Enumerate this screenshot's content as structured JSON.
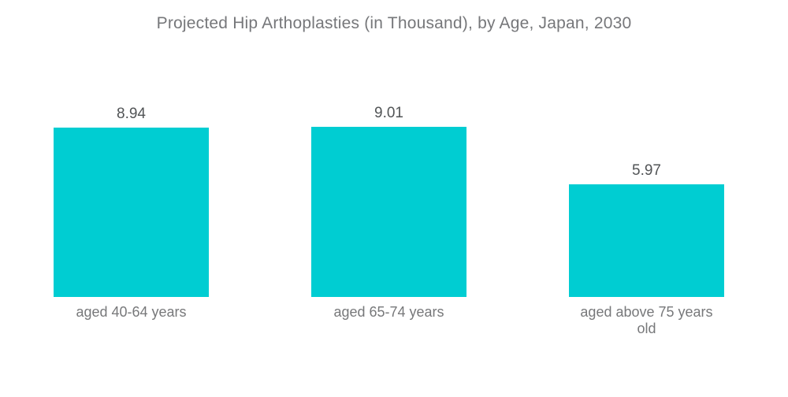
{
  "chart_data": {
    "type": "bar",
    "title": "Projected Hip Arthoplasties (in Thousand), by Age, Japan, 2030",
    "categories": [
      "aged 40-64 years",
      "aged 65-74 years",
      "aged above 75 years old"
    ],
    "values": [
      8.94,
      9.01,
      5.97
    ],
    "value_labels": [
      "8.94",
      "9.01",
      "5.97"
    ],
    "xlabel": "",
    "ylabel": "",
    "ylim": [
      0,
      9.5
    ],
    "grid": false,
    "legend": false,
    "axes_visible": false,
    "value_labels_position": "above-bars",
    "colors": {
      "bar": "#00CDD2",
      "title_text": "#76777A",
      "value_label_text": "#515456",
      "category_label_text": "#77787A",
      "background": "#FFFFFF"
    }
  }
}
